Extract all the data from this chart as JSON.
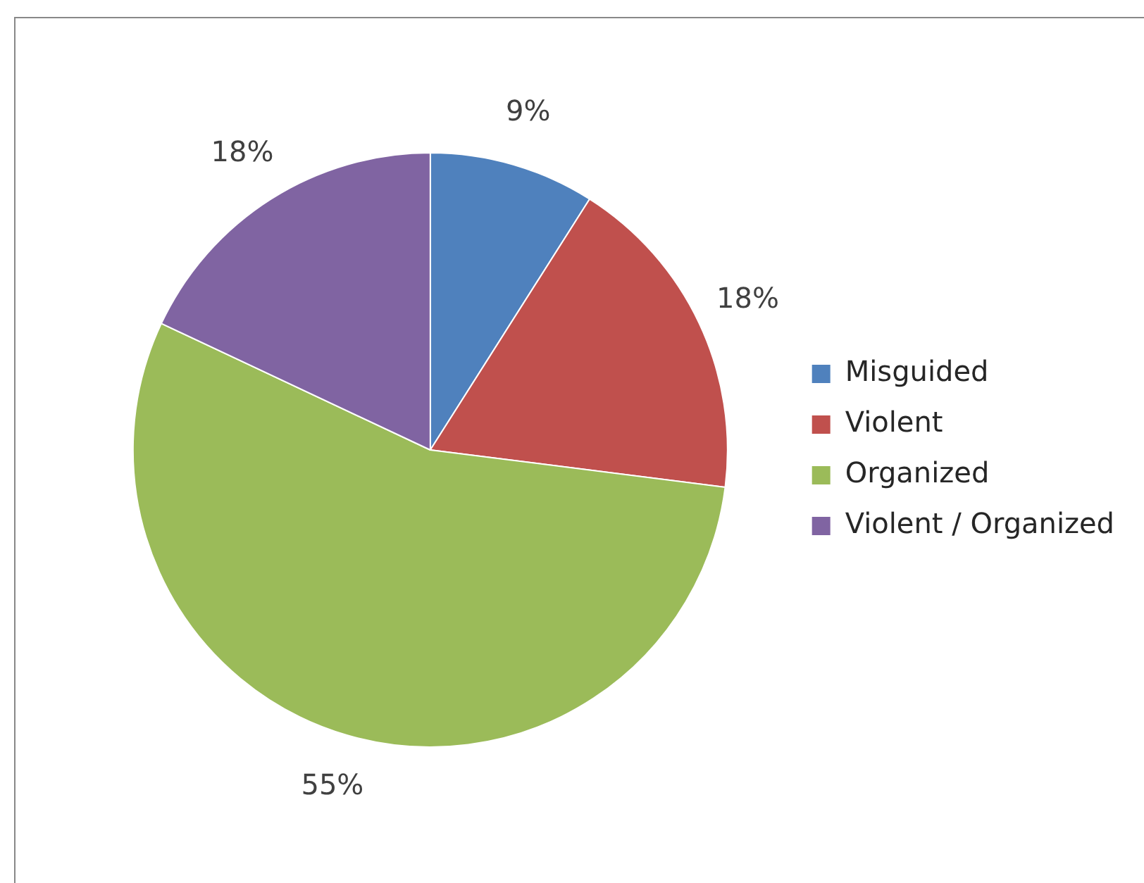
{
  "chart_data": {
    "type": "pie",
    "categories": [
      "Misguided",
      "Violent",
      "Organized",
      "Violent / Organized"
    ],
    "values": [
      9,
      18,
      55,
      18
    ],
    "colors": [
      "#4f81bd",
      "#c0504d",
      "#9bbb59",
      "#8064a2"
    ],
    "value_labels": [
      "9%",
      "18%",
      "55%",
      "18%"
    ],
    "legend": "right"
  }
}
